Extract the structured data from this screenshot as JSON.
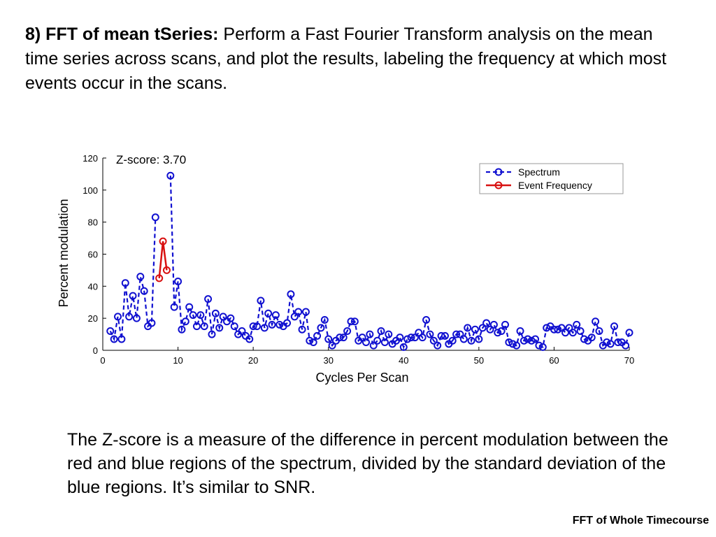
{
  "slide": {
    "heading_bold": "8) FFT of mean tSeries:",
    "heading_text": " Perform a Fast Fourier Transform analysis on the mean time series across scans, and plot the results, labeling the frequency at which most events occur in the scans.",
    "explanation": "The Z-score is a measure of the difference in percent modulation between the red and blue regions of the spectrum, divided by the standard deviation of the blue regions. It’s similar to SNR.",
    "footer": "FFT of Whole Timecourse"
  },
  "colors": {
    "spectrum": "#1010d0",
    "event": "#d81010",
    "axis": "#000000"
  },
  "chart_data": {
    "type": "line",
    "annotation": "Z-score: 3.70",
    "xlabel": "Cycles Per Scan",
    "ylabel": "Percent modulation",
    "xlim": [
      0,
      70
    ],
    "ylim": [
      0,
      120
    ],
    "xticks": [
      0,
      10,
      20,
      30,
      40,
      50,
      60,
      70
    ],
    "yticks": [
      0,
      20,
      40,
      60,
      80,
      100,
      120
    ],
    "grid": false,
    "legend_position": "top-right",
    "series": [
      {
        "name": "Spectrum",
        "style": "dashed-circle",
        "x": [
          1,
          1.5,
          2,
          2.5,
          3,
          3.5,
          4,
          4.5,
          5,
          5.5,
          6,
          6.5,
          7,
          7.5,
          8,
          8.5,
          9,
          9.5,
          10,
          10.5,
          11,
          11.5,
          12,
          12.5,
          13,
          13.5,
          14,
          14.5,
          15,
          15.5,
          16,
          16.5,
          17,
          17.5,
          18,
          18.5,
          19,
          19.5,
          20,
          20.5,
          21,
          21.5,
          22,
          22.5,
          23,
          23.5,
          24,
          24.5,
          25,
          25.5,
          26,
          26.5,
          27,
          27.5,
          28,
          28.5,
          29,
          29.5,
          30,
          30.5,
          31,
          31.5,
          32,
          32.5,
          33,
          33.5,
          34,
          34.5,
          35,
          35.5,
          36,
          36.5,
          37,
          37.5,
          38,
          38.5,
          39,
          39.5,
          40,
          40.5,
          41,
          41.5,
          42,
          42.5,
          43,
          43.5,
          44,
          44.5,
          45,
          45.5,
          46,
          46.5,
          47,
          47.5,
          48,
          48.5,
          49,
          49.5,
          50,
          50.5,
          51,
          51.5,
          52,
          52.5,
          53,
          53.5,
          54,
          54.5,
          55,
          55.5,
          56,
          56.5,
          57,
          57.5,
          58,
          58.5,
          59,
          59.5,
          60,
          60.5,
          61,
          61.5,
          62,
          62.5,
          63,
          63.5,
          64,
          64.5,
          65,
          65.5,
          66,
          66.5,
          67,
          67.5,
          68,
          68.5,
          69,
          69.5,
          70
        ],
        "y": [
          12,
          7,
          21,
          7,
          42,
          21,
          34,
          20,
          46,
          37,
          15,
          17,
          83,
          45,
          68,
          50,
          109,
          27,
          43,
          13,
          18,
          27,
          22,
          15,
          22,
          15,
          32,
          10,
          23,
          14,
          21,
          18,
          20,
          15,
          10,
          12,
          9,
          7,
          15,
          15,
          31,
          14,
          23,
          16,
          22,
          16,
          15,
          17,
          35,
          21,
          24,
          13,
          24,
          6,
          5,
          9,
          14,
          19,
          7,
          3,
          6,
          8,
          8,
          12,
          18,
          18,
          6,
          8,
          5,
          10,
          3,
          6,
          12,
          5,
          10,
          4,
          6,
          8,
          2,
          7,
          8,
          8,
          11,
          8,
          19,
          10,
          6,
          3,
          9,
          9,
          4,
          6,
          10,
          10,
          7,
          14,
          6,
          13,
          7,
          14,
          17,
          13,
          16,
          11,
          12,
          16,
          5,
          4,
          3,
          12,
          6,
          7,
          6,
          7,
          3,
          2,
          14,
          15,
          13,
          13,
          14,
          11,
          14,
          11,
          16,
          12,
          7,
          6,
          8,
          18,
          12,
          3,
          5,
          4,
          15,
          5,
          5,
          3,
          11
        ],
        "omit_points": [
          7.5,
          8.0,
          8.5
        ]
      },
      {
        "name": "Event Frequency",
        "style": "solid-circle",
        "x": [
          7.5,
          8.0,
          8.5
        ],
        "y": [
          45,
          68,
          50
        ]
      }
    ]
  }
}
